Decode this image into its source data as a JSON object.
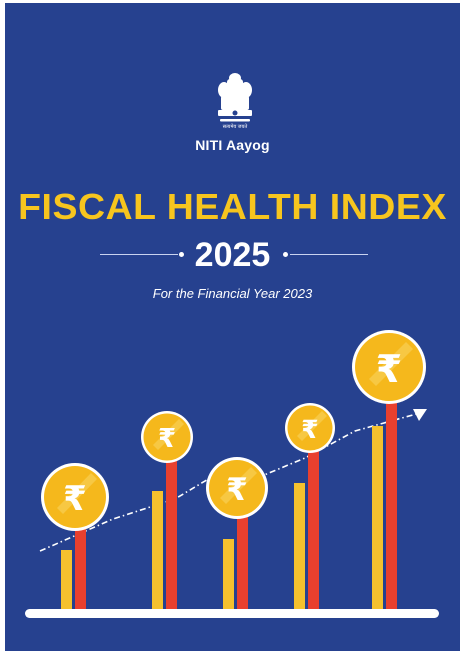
{
  "header": {
    "emblem_motto": "सत्यमेव जयते",
    "org_name": "NITI Aayog"
  },
  "title": "FISCAL HEALTH INDEX",
  "year": "2025",
  "subtitle": "For the Financial Year 2023",
  "illustration": {
    "currency_symbol": "₹",
    "colors": {
      "background": "#26418f",
      "title": "#f7c51e",
      "bar_yellow": "#f5c12e",
      "bar_red": "#e8402e",
      "coin": "#f5b81c",
      "base": "#ffffff"
    }
  }
}
